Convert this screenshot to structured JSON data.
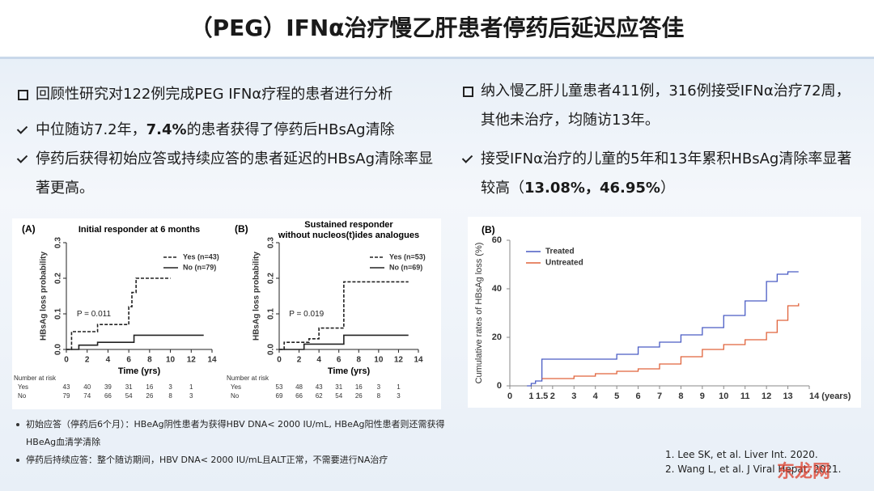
{
  "header": {
    "title": "（PEG）IFNα治疗慢乙肝患者停药后延迟应答佳"
  },
  "left": {
    "heading": "回顾性研究对122例完成PEG IFNα疗程的患者进行分析",
    "points": [
      {
        "text": "中位随访7.2年，",
        "bold": "7.4%",
        "rest": "的患者获得了停药后HBsAg清除"
      },
      {
        "text": "停药后获得初始应答或持续应答的患者延迟的HBsAg清除率显著更高。"
      }
    ]
  },
  "right": {
    "heading": "纳入慢乙肝儿童患者411例，316例接受IFNα治疗72周，其他未治疗，均随访13年。",
    "points": [
      {
        "text": "接受IFNα治疗的儿童的5年和13年累积HBsAg清除率显著较高（",
        "bold": "13.08%，46.95%",
        "rest": "）"
      }
    ]
  },
  "chart_data": [
    {
      "type": "step",
      "panel": "(A)",
      "title": [
        "Initial responder at 6 months"
      ],
      "x_label": "Time (yrs)",
      "y_label": "HBsAg loss probability",
      "annotation": "P = 0.011",
      "xlim": [
        0,
        14
      ],
      "xticks": [
        0,
        2,
        4,
        6,
        8,
        10,
        12,
        14
      ],
      "ylim": [
        0,
        0.3
      ],
      "yticks": [
        {
          "value": 0,
          "label": "0.0"
        },
        {
          "value": 0.1,
          "label": "0.1"
        },
        {
          "value": 0.2,
          "label": "0.2"
        },
        {
          "value": 0.3,
          "label": "0.3"
        }
      ],
      "series": [
        {
          "name": "Yes (n=43)",
          "color": "#222222",
          "line_style": "dashed",
          "x": [
            0,
            0.5,
            3,
            6,
            6.3,
            6.7,
            10
          ],
          "values": [
            0,
            0.05,
            0.07,
            0.12,
            0.16,
            0.2,
            0.2
          ]
        },
        {
          "name": "No (n=79)",
          "color": "#222222",
          "line_style": "solid",
          "x": [
            0,
            1.2,
            3,
            6.5,
            13.2
          ],
          "values": [
            0,
            0.012,
            0.02,
            0.04,
            0.04
          ]
        }
      ],
      "risk_table": {
        "label": "Number at risk",
        "rows": [
          {
            "name": "Yes",
            "counts": [
              43,
              40,
              39,
              31,
              16,
              3,
              1
            ]
          },
          {
            "name": "No",
            "counts": [
              79,
              74,
              66,
              54,
              26,
              8,
              3
            ]
          }
        ]
      }
    },
    {
      "type": "step",
      "panel": "(B)",
      "title": [
        "Sustained responder",
        "without nucleos(t)ides analogues"
      ],
      "x_label": "Time (yrs)",
      "y_label": "HBsAg loss probability",
      "annotation": "P = 0.019",
      "xlim": [
        0,
        14
      ],
      "xticks": [
        0,
        2,
        4,
        6,
        8,
        10,
        12,
        14
      ],
      "ylim": [
        0,
        0.3
      ],
      "yticks": [
        {
          "value": 0,
          "label": "0.0"
        },
        {
          "value": 0.1,
          "label": "0.1"
        },
        {
          "value": 0.2,
          "label": "0.2"
        },
        {
          "value": 0.3,
          "label": "0.3"
        }
      ],
      "series": [
        {
          "name": "Yes (n=53)",
          "color": "#222222",
          "line_style": "dashed",
          "x": [
            0,
            0.5,
            3,
            4,
            6.5,
            13
          ],
          "values": [
            0,
            0.02,
            0.03,
            0.06,
            0.19,
            0.19
          ]
        },
        {
          "name": "No (n=69)",
          "color": "#222222",
          "line_style": "solid",
          "x": [
            0,
            2.5,
            6.5,
            13
          ],
          "values": [
            0,
            0.015,
            0.04,
            0.04
          ]
        }
      ],
      "risk_table": {
        "label": "Number at risk",
        "rows": [
          {
            "name": "Yes",
            "counts": [
              53,
              48,
              43,
              31,
              16,
              3,
              1
            ]
          },
          {
            "name": "No",
            "counts": [
              69,
              66,
              62,
              54,
              26,
              8,
              3
            ]
          }
        ]
      }
    },
    {
      "type": "step",
      "panel": "(B)",
      "y_label": "Cumulative rates of HBsAg loss (%)",
      "xlim": [
        0,
        14
      ],
      "xticks": [
        0,
        1,
        1.5,
        2,
        3,
        4,
        5,
        6,
        7,
        8,
        9,
        10,
        11,
        12,
        13,
        {
          "value": 14,
          "label": "14 (years)"
        }
      ],
      "ylim": [
        0,
        60
      ],
      "yticks": [
        0,
        20,
        40,
        60
      ],
      "series": [
        {
          "name": "Treated",
          "color": "#4a5cc4",
          "line_style": "solid",
          "x": [
            0.8,
            1,
            1.2,
            1.5,
            4,
            5,
            6,
            7,
            8,
            9,
            10,
            11,
            12,
            12.5,
            13,
            13.5
          ],
          "values": [
            0,
            1,
            2,
            11,
            11,
            13,
            16,
            18,
            21,
            24,
            29,
            35,
            43,
            46,
            47,
            47
          ]
        },
        {
          "name": "Untreated",
          "color": "#e0643c",
          "line_style": "solid",
          "x": [
            1.5,
            3,
            4,
            5,
            6,
            7,
            8,
            9,
            10,
            11,
            12,
            12.5,
            13,
            13.5
          ],
          "values": [
            3,
            4,
            5,
            6,
            7,
            9,
            12,
            15,
            17,
            19,
            22,
            27,
            33,
            34
          ]
        }
      ]
    }
  ],
  "notes": [
    "初始应答（停药后6个月）：HBeAg阴性患者为获得HBV DNA< 2000 IU/mL, HBeAg阳性患者则还需获得HBeAg血清学清除",
    "停药后持续应答：整个随访期间，HBV DNA< 2000 IU/mL且ALT正常，不需要进行NA治疗"
  ],
  "references": [
    "1. Lee SK, et al. Liver Int. 2020.",
    "2. Wang L, et al. J Viral Hepat. 2021."
  ],
  "watermark": "东龙网"
}
